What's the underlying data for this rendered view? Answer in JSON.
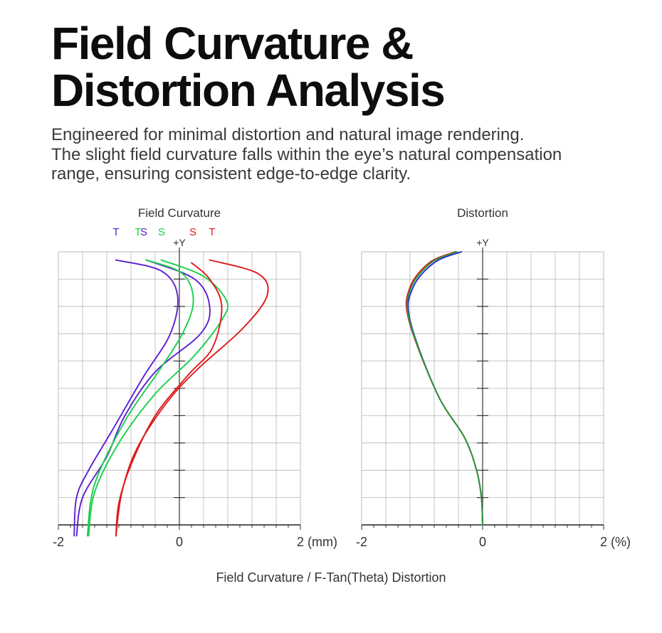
{
  "header": {
    "title_lines": [
      "Field Curvature &",
      "Distortion Analysis"
    ],
    "subtitle_lines": [
      "Engineered for minimal distortion and natural image rendering.",
      "The slight field curvature falls within the eye’s natural compensation",
      "range, ensuring consistent edge-to-edge clarity."
    ]
  },
  "caption": "Field Curvature / F-Tan(Theta) Distortion",
  "chart_data": [
    {
      "type": "line",
      "title": "Field Curvature",
      "xlabel": "",
      "ylabel": "+Y",
      "xlim": [
        -2,
        2
      ],
      "ylim": [
        0,
        1
      ],
      "x_tick_labels": [
        "-2",
        "0",
        "2"
      ],
      "x_unit_label": "(mm)",
      "grid": true,
      "legend_labels": [
        {
          "text": "T",
          "color": "#5b1fd0"
        },
        {
          "text": "T",
          "color": "#19d04a"
        },
        {
          "text": "S",
          "color": "#5b1fd0"
        },
        {
          "text": "S",
          "color": "#19d04a"
        },
        {
          "text": "S",
          "color": "#dd1a1a"
        },
        {
          "text": "T",
          "color": "#dd1a1a"
        }
      ],
      "series": [
        {
          "color": "#5b1fd0",
          "points": [
            [
              -1.74,
              -0.04
            ],
            [
              -1.7,
              0.1
            ],
            [
              -1.5,
              0.2
            ],
            [
              -1.1,
              0.35
            ],
            [
              -0.6,
              0.54
            ],
            [
              -0.15,
              0.7
            ],
            [
              -0.03,
              0.84
            ],
            [
              -0.3,
              0.93
            ],
            [
              -1.05,
              0.97
            ]
          ]
        },
        {
          "color": "#5b1fd0",
          "points": [
            [
              -1.7,
              -0.04
            ],
            [
              -1.6,
              0.1
            ],
            [
              -1.2,
              0.25
            ],
            [
              -0.9,
              0.4
            ],
            [
              -0.4,
              0.56
            ],
            [
              0.35,
              0.7
            ],
            [
              0.5,
              0.8
            ],
            [
              0.25,
              0.9
            ],
            [
              -0.55,
              0.97
            ]
          ]
        },
        {
          "color": "#19d04a",
          "points": [
            [
              -1.52,
              -0.04
            ],
            [
              -1.4,
              0.15
            ],
            [
              -0.9,
              0.38
            ],
            [
              -0.35,
              0.56
            ],
            [
              0.05,
              0.7
            ],
            [
              0.23,
              0.82
            ],
            [
              0.05,
              0.92
            ],
            [
              -0.55,
              0.97
            ]
          ]
        },
        {
          "color": "#19d04a",
          "points": [
            [
              -1.5,
              -0.04
            ],
            [
              -1.4,
              0.12
            ],
            [
              -1.0,
              0.3
            ],
            [
              -0.4,
              0.48
            ],
            [
              0.25,
              0.62
            ],
            [
              0.7,
              0.75
            ],
            [
              0.78,
              0.82
            ],
            [
              0.4,
              0.91
            ],
            [
              -0.3,
              0.97
            ]
          ]
        },
        {
          "color": "#dd1a1a",
          "points": [
            [
              -1.05,
              -0.04
            ],
            [
              -1.0,
              0.08
            ],
            [
              -0.8,
              0.22
            ],
            [
              -0.4,
              0.4
            ],
            [
              0.15,
              0.55
            ],
            [
              0.55,
              0.65
            ],
            [
              0.7,
              0.8
            ],
            [
              0.5,
              0.9
            ],
            [
              0.2,
              0.96
            ]
          ]
        },
        {
          "color": "#dd1a1a",
          "points": [
            [
              -1.05,
              -0.04
            ],
            [
              -0.95,
              0.12
            ],
            [
              -0.7,
              0.28
            ],
            [
              -0.2,
              0.45
            ],
            [
              0.3,
              0.57
            ],
            [
              1.05,
              0.72
            ],
            [
              1.45,
              0.84
            ],
            [
              1.3,
              0.92
            ],
            [
              0.5,
              0.97
            ]
          ]
        }
      ]
    },
    {
      "type": "line",
      "title": "Distortion",
      "xlabel": "",
      "ylabel": "+Y",
      "xlim": [
        -2,
        2
      ],
      "ylim": [
        0,
        1
      ],
      "x_tick_labels": [
        "-2",
        "0",
        "2"
      ],
      "x_unit_label": "(%)",
      "grid": true,
      "series": [
        {
          "color": "#1a2fd8",
          "points": [
            [
              0.0,
              0.0
            ],
            [
              -0.02,
              0.1
            ],
            [
              -0.1,
              0.2
            ],
            [
              -0.3,
              0.32
            ],
            [
              -0.75,
              0.48
            ],
            [
              -1.2,
              0.75
            ],
            [
              -1.15,
              0.87
            ],
            [
              -0.8,
              0.96
            ],
            [
              -0.35,
              1.0
            ]
          ]
        },
        {
          "color": "#dd1a1a",
          "points": [
            [
              0.0,
              0.0
            ],
            [
              -0.02,
              0.1
            ],
            [
              -0.1,
              0.2
            ],
            [
              -0.3,
              0.32
            ],
            [
              -0.75,
              0.48
            ],
            [
              -1.22,
              0.75
            ],
            [
              -1.2,
              0.87
            ],
            [
              -0.88,
              0.96
            ],
            [
              -0.45,
              1.0
            ]
          ]
        },
        {
          "color": "#2a9a3a",
          "points": [
            [
              0.0,
              0.0
            ],
            [
              -0.02,
              0.1
            ],
            [
              -0.1,
              0.2
            ],
            [
              -0.3,
              0.32
            ],
            [
              -0.75,
              0.48
            ],
            [
              -1.21,
              0.75
            ],
            [
              -1.18,
              0.87
            ],
            [
              -0.85,
              0.96
            ],
            [
              -0.42,
              1.0
            ]
          ]
        }
      ]
    }
  ]
}
